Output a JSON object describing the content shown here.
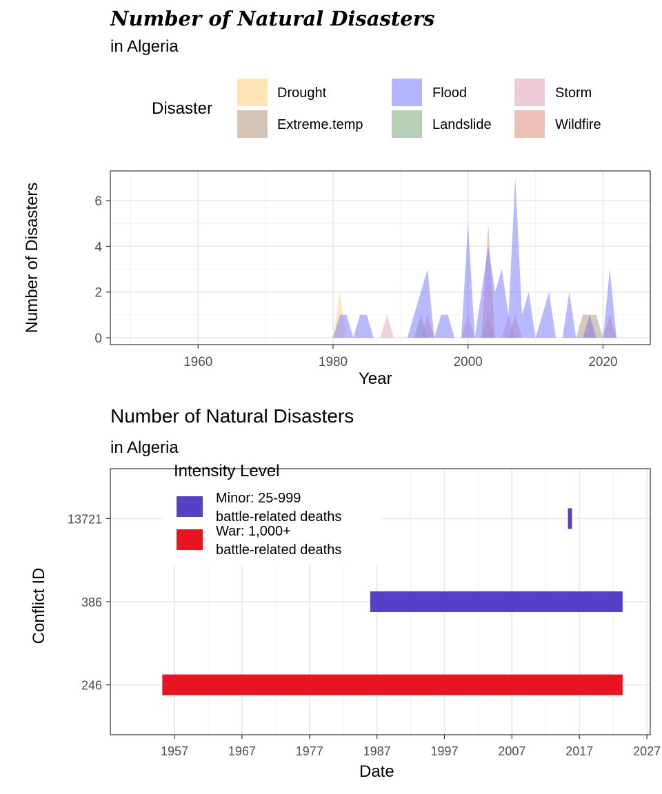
{
  "chart_data": [
    {
      "type": "area",
      "title": "Number of Natural Disasters",
      "subtitle": "in Algeria",
      "xlabel": "Year",
      "ylabel": "Number of Disasters",
      "xlim": [
        1947,
        2027
      ],
      "ylim": [
        -0.3,
        7.3
      ],
      "x_ticks": [
        1960,
        1980,
        2000,
        2020
      ],
      "y_ticks": [
        0,
        2,
        4,
        6
      ],
      "grid": true,
      "legend": {
        "title": "Disaster",
        "placement": "top",
        "entries": [
          {
            "name": "Drought",
            "color": "#FFE4B5"
          },
          {
            "name": "Flood",
            "color": "#B3B3FF"
          },
          {
            "name": "Storm",
            "color": "#EDCBD6"
          },
          {
            "name": "Extreme.temp",
            "color": "#D6C4B7"
          },
          {
            "name": "Landslide",
            "color": "#B7CFB4"
          },
          {
            "name": "Wildfire",
            "color": "#EDC0B5"
          }
        ]
      },
      "series": [
        {
          "name": "Drought",
          "color": "#FFD58C",
          "points": [
            [
              1980,
              0
            ],
            [
              1981,
              2
            ],
            [
              1982,
              0
            ],
            [
              2017,
              0
            ],
            [
              2018,
              1
            ],
            [
              2019,
              0
            ]
          ]
        },
        {
          "name": "Extreme.temp",
          "color": "#B59A86",
          "points": [
            [
              2016,
              0
            ],
            [
              2017,
              1
            ],
            [
              2018,
              1
            ],
            [
              2019,
              1
            ],
            [
              2020,
              0
            ]
          ]
        },
        {
          "name": "Landslide",
          "color": "#8CB48C",
          "points": [
            [
              1992,
              0
            ],
            [
              1993,
              1
            ],
            [
              1994,
              0
            ]
          ]
        },
        {
          "name": "Storm",
          "color": "#E3A8BD",
          "points": [
            [
              1987,
              0
            ],
            [
              1988,
              1
            ],
            [
              1989,
              0
            ],
            [
              1999,
              0
            ],
            [
              2000,
              1
            ],
            [
              2001,
              0
            ],
            [
              2002,
              0
            ],
            [
              2003,
              1
            ],
            [
              2004,
              0
            ],
            [
              2005,
              0
            ],
            [
              2006,
              1
            ],
            [
              2007,
              0
            ]
          ]
        },
        {
          "name": "Wildfire",
          "color": "#E39A8C",
          "points": [
            [
              1993,
              0
            ],
            [
              1994,
              1
            ],
            [
              1995,
              0
            ],
            [
              2002,
              0
            ],
            [
              2003,
              5
            ],
            [
              2004,
              0
            ],
            [
              2006,
              0
            ],
            [
              2007,
              1
            ],
            [
              2008,
              0
            ],
            [
              2020,
              0
            ],
            [
              2021,
              1
            ],
            [
              2022,
              0
            ]
          ]
        },
        {
          "name": "Flood",
          "color": "#7F7FFF",
          "points": [
            [
              1980,
              0
            ],
            [
              1981,
              1
            ],
            [
              1982,
              1
            ],
            [
              1983,
              0
            ],
            [
              1984,
              1
            ],
            [
              1985,
              1
            ],
            [
              1986,
              0
            ],
            [
              1991,
              0
            ],
            [
              1994,
              3
            ],
            [
              1995,
              0
            ],
            [
              1996,
              1
            ],
            [
              1997,
              1
            ],
            [
              1998,
              0
            ],
            [
              1999,
              0
            ],
            [
              2000,
              5
            ],
            [
              2001,
              0
            ],
            [
              2002,
              2
            ],
            [
              2003,
              4
            ],
            [
              2004,
              2
            ],
            [
              2005,
              3
            ],
            [
              2006,
              1
            ],
            [
              2007,
              7
            ],
            [
              2008,
              1
            ],
            [
              2009,
              2
            ],
            [
              2010,
              0
            ],
            [
              2012,
              2
            ],
            [
              2013,
              0
            ],
            [
              2014,
              0
            ],
            [
              2015,
              2
            ],
            [
              2016,
              0
            ],
            [
              2017,
              0
            ],
            [
              2018,
              1
            ],
            [
              2019,
              0
            ],
            [
              2020,
              0
            ],
            [
              2021,
              3
            ],
            [
              2022,
              0
            ]
          ]
        }
      ]
    },
    {
      "type": "bar",
      "title": "Number of Natural Disasters",
      "subtitle": "in Algeria",
      "xlabel": "Date",
      "ylabel": "Conflict ID",
      "xlim": [
        1947.5,
        2027.5
      ],
      "x_ticks": [
        1957,
        1967,
        1977,
        1987,
        1997,
        2007,
        2017,
        2027
      ],
      "categories": [
        "246",
        "386",
        "13721"
      ],
      "grid": true,
      "legend": {
        "title": "Intensity Level",
        "placement": "top-left",
        "entries": [
          {
            "name": "Minor: 25-999",
            "name2": "battle-related deaths",
            "color": "#5541C6"
          },
          {
            "name": "War: 1,000+",
            "name2": "battle-related deaths",
            "color": "#E8141F"
          }
        ]
      },
      "bars": [
        {
          "category": "13721",
          "start": 2015.3,
          "end": 2015.9,
          "intensity": "Minor: 25-999",
          "color": "#5541C6"
        },
        {
          "category": "386",
          "start": 1986.0,
          "end": 2023.4,
          "intensity": "Minor: 25-999",
          "color": "#5541C6"
        },
        {
          "category": "246",
          "start": 1955.2,
          "end": 2023.4,
          "intensity": "War: 1,000+",
          "color": "#E8141F"
        }
      ]
    }
  ]
}
